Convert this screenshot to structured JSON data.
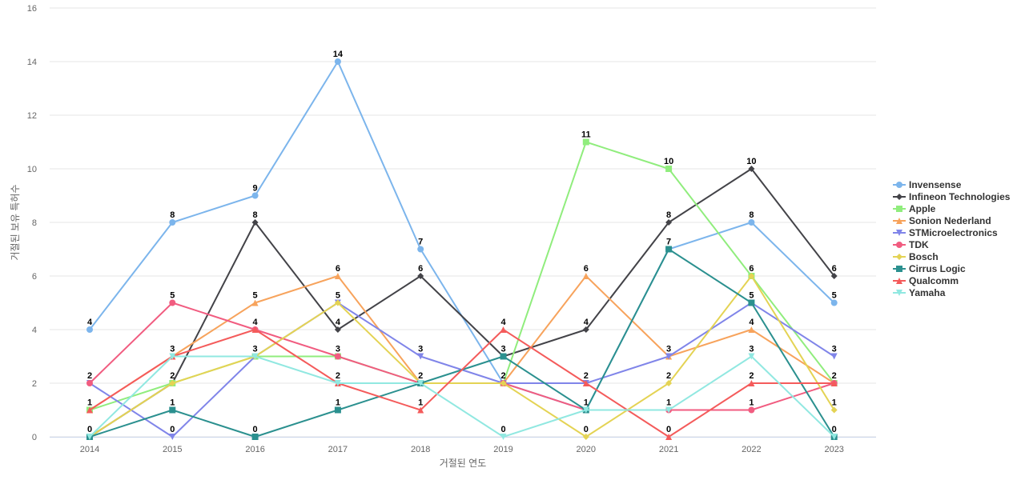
{
  "chart_data": {
    "type": "line",
    "title": "",
    "xlabel": "거절된 연도",
    "ylabel": "거절된 보유 특허수",
    "x": [
      "2014",
      "2015",
      "2016",
      "2017",
      "2018",
      "2019",
      "2020",
      "2021",
      "2022",
      "2023"
    ],
    "ylim": [
      0,
      16
    ],
    "yticks": [
      0,
      2,
      4,
      6,
      8,
      10,
      12,
      14,
      16
    ],
    "grid": true,
    "legend_position": "right",
    "series": [
      {
        "name": "Invensense",
        "color": "#7cb5ec",
        "marker": "circle",
        "values": [
          4,
          8,
          9,
          14,
          7,
          2,
          1,
          7,
          8,
          5
        ]
      },
      {
        "name": "Infineon Technologies",
        "color": "#434348",
        "marker": "diamond",
        "values": [
          0,
          2,
          8,
          4,
          6,
          3,
          4,
          8,
          10,
          6
        ]
      },
      {
        "name": "Apple",
        "color": "#90ed7d",
        "marker": "square",
        "values": [
          1,
          2,
          3,
          3,
          2,
          2,
          11,
          10,
          6,
          2
        ]
      },
      {
        "name": "Sonion Nederland",
        "color": "#f7a35c",
        "marker": "triangle",
        "values": [
          1,
          3,
          5,
          6,
          2,
          2,
          6,
          3,
          4,
          2
        ]
      },
      {
        "name": "STMicroelectronics",
        "color": "#8085e9",
        "marker": "triangle-down",
        "values": [
          2,
          0,
          3,
          5,
          3,
          2,
          2,
          3,
          5,
          3
        ]
      },
      {
        "name": "TDK",
        "color": "#f15c80",
        "marker": "circle",
        "values": [
          2,
          5,
          4,
          3,
          2,
          2,
          1,
          1,
          1,
          2
        ]
      },
      {
        "name": "Bosch",
        "color": "#e4d354",
        "marker": "diamond",
        "values": [
          0,
          2,
          3,
          5,
          2,
          2,
          0,
          2,
          6,
          1
        ]
      },
      {
        "name": "Cirrus Logic",
        "color": "#2b908f",
        "marker": "square",
        "values": [
          0,
          1,
          0,
          1,
          2,
          3,
          1,
          7,
          5,
          0
        ]
      },
      {
        "name": "Qualcomm",
        "color": "#f45b5b",
        "marker": "triangle",
        "values": [
          1,
          3,
          4,
          2,
          1,
          4,
          2,
          0,
          2,
          2
        ]
      },
      {
        "name": "Yamaha",
        "color": "#91e8e1",
        "marker": "triangle-down",
        "values": [
          0,
          3,
          3,
          2,
          2,
          0,
          1,
          1,
          3,
          0
        ]
      }
    ],
    "data_labels": [
      {
        "x": "2014",
        "value": 4,
        "series": "Invensense"
      },
      {
        "x": "2014",
        "value": 2,
        "series": "STMicroelectronics"
      },
      {
        "x": "2014",
        "value": 1,
        "series": "Apple"
      },
      {
        "x": "2014",
        "value": 0,
        "series": "Cirrus Logic"
      },
      {
        "x": "2015",
        "value": 8,
        "series": "Invensense"
      },
      {
        "x": "2015",
        "value": 5,
        "series": "TDK"
      },
      {
        "x": "2015",
        "value": 3,
        "series": "Sonion Nederland"
      },
      {
        "x": "2015",
        "value": 2,
        "series": "Bosch"
      },
      {
        "x": "2015",
        "value": 1,
        "series": "Cirrus Logic"
      },
      {
        "x": "2015",
        "value": 0,
        "series": "STMicroelectronics"
      },
      {
        "x": "2016",
        "value": 9,
        "series": "Invensense"
      },
      {
        "x": "2016",
        "value": 8,
        "series": "Infineon Technologies"
      },
      {
        "x": "2016",
        "value": 5,
        "series": "Sonion Nederland"
      },
      {
        "x": "2016",
        "value": 4,
        "series": "Qualcomm"
      },
      {
        "x": "2016",
        "value": 3,
        "series": "Apple"
      },
      {
        "x": "2016",
        "value": 0,
        "series": "Cirrus Logic"
      },
      {
        "x": "2017",
        "value": 14,
        "series": "Invensense"
      },
      {
        "x": "2017",
        "value": 6,
        "series": "Sonion Nederland"
      },
      {
        "x": "2017",
        "value": 5,
        "series": "Bosch"
      },
      {
        "x": "2017",
        "value": 4,
        "series": "Infineon Technologies"
      },
      {
        "x": "2017",
        "value": 3,
        "series": "TDK"
      },
      {
        "x": "2017",
        "value": 2,
        "series": "Yamaha"
      },
      {
        "x": "2017",
        "value": 1,
        "series": "Cirrus Logic"
      },
      {
        "x": "2018",
        "value": 7,
        "series": "Invensense"
      },
      {
        "x": "2018",
        "value": 6,
        "series": "Infineon Technologies"
      },
      {
        "x": "2018",
        "value": 3,
        "series": "STMicroelectronics"
      },
      {
        "x": "2018",
        "value": 2,
        "series": "Cirrus Logic"
      },
      {
        "x": "2018",
        "value": 1,
        "series": "Qualcomm"
      },
      {
        "x": "2019",
        "value": 4,
        "series": "Qualcomm"
      },
      {
        "x": "2019",
        "value": 3,
        "series": "Cirrus Logic"
      },
      {
        "x": "2019",
        "value": 2,
        "series": "Invensense"
      },
      {
        "x": "2019",
        "value": 0,
        "series": "Yamaha"
      },
      {
        "x": "2020",
        "value": 11,
        "series": "Apple"
      },
      {
        "x": "2020",
        "value": 6,
        "series": "Sonion Nederland"
      },
      {
        "x": "2020",
        "value": 4,
        "series": "Infineon Technologies"
      },
      {
        "x": "2020",
        "value": 2,
        "series": "Qualcomm"
      },
      {
        "x": "2020",
        "value": 1,
        "series": "TDK"
      },
      {
        "x": "2020",
        "value": 0,
        "series": "Bosch"
      },
      {
        "x": "2021",
        "value": 10,
        "series": "Apple"
      },
      {
        "x": "2021",
        "value": 8,
        "series": "Infineon Technologies"
      },
      {
        "x": "2021",
        "value": 7,
        "series": "Cirrus Logic"
      },
      {
        "x": "2021",
        "value": 3,
        "series": "Sonion Nederland"
      },
      {
        "x": "2021",
        "value": 2,
        "series": "Bosch"
      },
      {
        "x": "2021",
        "value": 1,
        "series": "TDK"
      },
      {
        "x": "2021",
        "value": 0,
        "series": "Qualcomm"
      },
      {
        "x": "2022",
        "value": 10,
        "series": "Infineon Technologies"
      },
      {
        "x": "2022",
        "value": 8,
        "series": "Invensense"
      },
      {
        "x": "2022",
        "value": 6,
        "series": "Apple"
      },
      {
        "x": "2022",
        "value": 5,
        "series": "STMicroelectronics"
      },
      {
        "x": "2022",
        "value": 4,
        "series": "Sonion Nederland"
      },
      {
        "x": "2022",
        "value": 3,
        "series": "Yamaha"
      },
      {
        "x": "2022",
        "value": 2,
        "series": "Qualcomm"
      },
      {
        "x": "2022",
        "value": 1,
        "series": "TDK"
      },
      {
        "x": "2023",
        "value": 6,
        "series": "Infineon Technologies"
      },
      {
        "x": "2023",
        "value": 5,
        "series": "Invensense"
      },
      {
        "x": "2023",
        "value": 3,
        "series": "STMicroelectronics"
      },
      {
        "x": "2023",
        "value": 2,
        "series": "Apple"
      },
      {
        "x": "2023",
        "value": 1,
        "series": "Bosch"
      },
      {
        "x": "2023",
        "value": 0,
        "series": "Cirrus Logic"
      }
    ]
  }
}
